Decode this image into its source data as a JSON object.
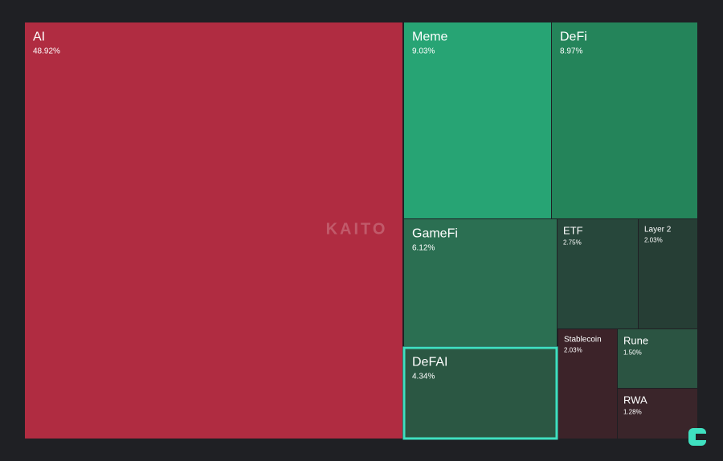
{
  "chart_data": {
    "type": "treemap",
    "watermark": "KAITO",
    "categories": [
      "AI",
      "Meme",
      "DeFi",
      "GameFi",
      "ETF",
      "Layer 2",
      "DeFAI",
      "Stablecoin",
      "Rune",
      "RWA"
    ],
    "values": [
      48.92,
      9.03,
      8.97,
      6.12,
      2.75,
      2.03,
      4.34,
      2.03,
      1.5,
      1.28
    ],
    "value_labels": [
      "48.92%",
      "9.03%",
      "8.97%",
      "6.12%",
      "2.75%",
      "2.03%",
      "4.34%",
      "2.03%",
      "1.50%",
      "1.28%"
    ],
    "colors": [
      "#b02c41",
      "#27a474",
      "#24845a",
      "#2b6f52",
      "#27473b",
      "#263e35",
      "#2b5743",
      "#3c2329",
      "#2b5442",
      "#3a252a"
    ],
    "highlight": "DeFAI"
  }
}
